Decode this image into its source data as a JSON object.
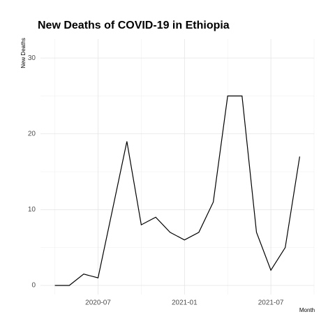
{
  "chart_data": {
    "type": "line",
    "title": "New Deaths of COVID-19 in Ethiopia",
    "y_label": "New Deaths",
    "x_label": "Month",
    "x": [
      "2020-04",
      "2020-05",
      "2020-06",
      "2020-07",
      "2020-08",
      "2020-09",
      "2020-10",
      "2020-11",
      "2020-12",
      "2021-01",
      "2021-02",
      "2021-03",
      "2021-04",
      "2021-05",
      "2021-06",
      "2021-07",
      "2021-08",
      "2021-09"
    ],
    "series": [
      {
        "name": "New Deaths",
        "color": "#000000",
        "values": [
          0,
          0,
          1.5,
          1,
          10,
          19,
          8,
          9,
          7,
          6,
          7,
          11,
          25,
          25,
          7,
          2,
          5,
          17
        ]
      }
    ],
    "xlim": [
      "2020-03",
      "2021-10"
    ],
    "xticks": [
      "2020-07",
      "2021-01",
      "2021-07"
    ],
    "minor_xticks": [
      "2020-04",
      "2020-10",
      "2021-04",
      "2021-10"
    ],
    "ylim": [
      -1.2,
      32.5
    ],
    "yticks": [
      0,
      10,
      20,
      30
    ],
    "minor_yticks": [
      5,
      15,
      25
    ],
    "grid": true
  }
}
